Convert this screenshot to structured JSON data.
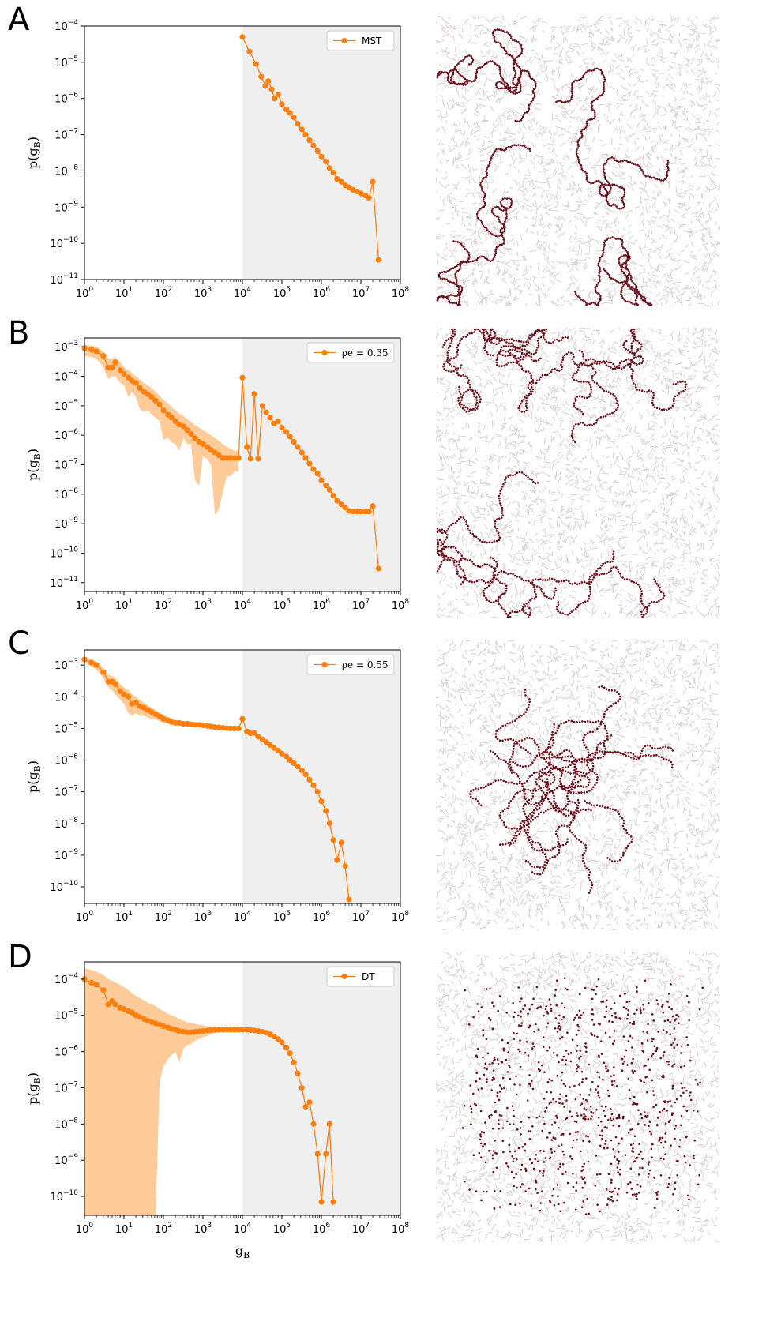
{
  "panels": [
    {
      "letter": "A",
      "legend": "MST",
      "legend_math": false
    },
    {
      "letter": "B",
      "legend": "ρe = 0.35",
      "legend_math": true
    },
    {
      "letter": "C",
      "legend": "ρe = 0.55",
      "legend_math": true
    },
    {
      "letter": "D",
      "legend": "DT",
      "legend_math": false
    }
  ],
  "axis": {
    "ylabel": "p(gB)",
    "xlabel": "gB",
    "xtick_labels": [
      "10^0",
      "10^1",
      "10^2",
      "10^3",
      "10^4",
      "10^5",
      "10^6",
      "10^7",
      "10^8"
    ]
  },
  "colors": {
    "series": "#ff7f0e",
    "band": "#ffcc99",
    "shaded_region": "#efefef",
    "network_edges": "#d8cfcf",
    "highlight_nodes": "#6b0f1a"
  },
  "chart_data": [
    {
      "type": "line",
      "title": "",
      "xlabel": "",
      "ylabel": "p(gB)",
      "xscale": "log",
      "yscale": "log",
      "xlim": [
        1,
        100000000
      ],
      "ylim": [
        1e-11,
        0.0001
      ],
      "yticks": [
        -11,
        -10,
        -9,
        -8,
        -7,
        -6,
        -5,
        -4
      ],
      "shaded_x_range": [
        10000,
        100000000
      ],
      "legend": "top-right",
      "series": [
        {
          "name": "MST",
          "x": [
            10000,
            15000,
            22000,
            30000,
            38000,
            45000,
            55000,
            65000,
            80000,
            100000,
            130000,
            160000,
            200000,
            250000,
            320000,
            400000,
            500000,
            630000,
            800000,
            1000000,
            1300000,
            1600000,
            2000000,
            2500000,
            3200000,
            4000000,
            5000000,
            6300000,
            8000000,
            10000000,
            13000000,
            16000000,
            20000000,
            28000000
          ],
          "y": [
            5e-05,
            2e-05,
            9e-06,
            4e-06,
            2.2e-06,
            3e-06,
            1.8e-06,
            1e-06,
            1.3e-06,
            7e-07,
            5e-07,
            4e-07,
            3e-07,
            2e-07,
            1.4e-07,
            1e-07,
            7e-08,
            5e-08,
            3.5e-08,
            2.5e-08,
            1.8e-08,
            1.2e-08,
            9e-09,
            6e-09,
            5e-09,
            4e-09,
            3.5e-09,
            3e-09,
            2.7e-09,
            2.4e-09,
            2.1e-09,
            1.8e-09,
            5e-09,
            3.5e-11
          ]
        }
      ]
    },
    {
      "type": "line",
      "title": "",
      "xlabel": "",
      "ylabel": "p(gB)",
      "xscale": "log",
      "yscale": "log",
      "xlim": [
        1,
        100000000
      ],
      "ylim": [
        5e-12,
        0.002
      ],
      "yticks": [
        -11,
        -10,
        -9,
        -8,
        -7,
        -6,
        -5,
        -4,
        -3
      ],
      "shaded_x_range": [
        10000,
        100000000
      ],
      "legend": "top-right",
      "series": [
        {
          "name": "ρe = 0.35",
          "x": [
            1,
            1.5,
            2,
            3,
            4,
            5,
            6,
            8,
            10,
            13,
            16,
            20,
            25,
            32,
            40,
            50,
            63,
            80,
            100,
            130,
            160,
            200,
            250,
            320,
            400,
            500,
            630,
            800,
            1000,
            1300,
            1600,
            2000,
            2500,
            3200,
            4000,
            5000,
            6300,
            8000,
            10000,
            13000,
            16000,
            20000,
            25000,
            32000,
            40000,
            50000,
            63000,
            80000,
            100000,
            130000,
            160000,
            200000,
            250000,
            320000,
            400000,
            500000,
            630000,
            800000,
            1000000,
            1300000,
            1600000,
            2000000,
            2500000,
            3200000,
            4000000,
            5000000,
            6300000,
            8000000,
            10000000,
            13000000,
            16000000,
            20000000,
            28000000
          ],
          "y": [
            0.0009,
            0.0008,
            0.0007,
            0.0005,
            0.0002,
            0.0002,
            0.0003,
            0.00016,
            0.00012,
            9e-05,
            7e-05,
            6e-05,
            4e-05,
            3e-05,
            2.5e-05,
            2e-05,
            1.5e-05,
            1.1e-05,
            7e-06,
            5e-06,
            4e-06,
            3e-06,
            2.3e-06,
            2e-06,
            1.5e-06,
            1.1e-06,
            8e-07,
            6e-07,
            5e-07,
            4e-07,
            3.2e-07,
            2.6e-07,
            2.1e-07,
            1.7e-07,
            1.7e-07,
            1.7e-07,
            1.7e-07,
            1.7e-07,
            9e-05,
            4e-07,
            1.6e-07,
            2.5e-05,
            1.6e-07,
            1e-05,
            6e-06,
            4e-06,
            2.5e-06,
            3e-06,
            1.8e-06,
            1.3e-06,
            9e-07,
            6e-07,
            4e-07,
            2.6e-07,
            1.7e-07,
            1.1e-07,
            7e-08,
            5e-08,
            3e-08,
            2e-08,
            1.4e-08,
            9e-09,
            6e-09,
            4.5e-09,
            3.5e-09,
            2.7e-09,
            2.6e-09,
            2.6e-09,
            2.6e-09,
            2.6e-09,
            2.6e-09,
            4e-09,
            3e-11
          ],
          "band_upper": [
            0.0012,
            0.0011,
            0.001,
            0.0007,
            0.0004,
            0.0004,
            0.00045,
            0.0003,
            0.0002,
            0.00016,
            0.00013,
            0.0001,
            8e-05,
            6e-05,
            5e-05,
            4e-05,
            3e-05,
            2.2e-05,
            1.6e-05,
            1.2e-05,
            9e-06,
            7e-06,
            5.5e-06,
            4.5e-06,
            3.5e-06,
            2.8e-06,
            2.2e-06,
            1.8e-06,
            1.5e-06,
            1.2e-06,
            1e-06,
            8e-07,
            6.5e-07,
            5e-07,
            4e-07,
            3.5e-07,
            3e-07,
            3e-07
          ],
          "band_lower": [
            0.0005,
            0.00045,
            0.0004,
            0.0002,
            8e-05,
            0.0001,
            0.0001,
            6e-05,
            5e-05,
            2e-05,
            3e-05,
            2e-05,
            8e-06,
            6e-06,
            7e-06,
            5e-06,
            4e-06,
            3e-06,
            7e-07,
            8e-07,
            6e-07,
            5e-07,
            3e-07,
            8e-07,
            5e-07,
            5e-07,
            3e-08,
            2e-08,
            2e-07,
            1.5e-07,
            1e-07,
            2e-09,
            3e-09,
            1.2e-08,
            4e-08,
            4e-08,
            6e-08,
            6e-08
          ]
        }
      ]
    },
    {
      "type": "line",
      "title": "",
      "xlabel": "",
      "ylabel": "p(gB)",
      "xscale": "log",
      "yscale": "log",
      "xlim": [
        1,
        100000000
      ],
      "ylim": [
        3e-11,
        0.003
      ],
      "yticks": [
        -10,
        -9,
        -8,
        -7,
        -6,
        -5,
        -4,
        -3
      ],
      "shaded_x_range": [
        10000,
        100000000
      ],
      "legend": "top-right",
      "series": [
        {
          "name": "ρe = 0.55",
          "x": [
            1,
            1.5,
            2,
            3,
            4,
            5,
            6,
            8,
            10,
            13,
            16,
            20,
            25,
            32,
            40,
            50,
            63,
            80,
            100,
            130,
            160,
            200,
            250,
            320,
            400,
            500,
            630,
            800,
            1000,
            1300,
            1600,
            2000,
            2500,
            3200,
            4000,
            5000,
            6300,
            8000,
            10000,
            13000,
            16000,
            20000,
            25000,
            32000,
            40000,
            50000,
            63000,
            80000,
            100000,
            130000,
            160000,
            200000,
            250000,
            320000,
            400000,
            500000,
            630000,
            800000,
            1000000,
            1300000,
            1600000,
            2000000,
            2500000,
            3200000,
            4000000,
            5000000
          ],
          "y": [
            0.0015,
            0.0012,
            0.001,
            0.0006,
            0.0003,
            0.0003,
            0.00025,
            0.00015,
            0.00012,
            0.0001,
            6e-05,
            6.5e-05,
            5e-05,
            4.5e-05,
            3.8e-05,
            3.3e-05,
            2.8e-05,
            2.4e-05,
            2e-05,
            1.8e-05,
            1.6e-05,
            1.5e-05,
            1.5e-05,
            1.4e-05,
            1.4e-05,
            1.35e-05,
            1.3e-05,
            1.3e-05,
            1.25e-05,
            1.2e-05,
            1.15e-05,
            1.1e-05,
            1.08e-05,
            1.05e-05,
            1.02e-05,
            1e-05,
            1e-05,
            1e-05,
            2e-05,
            8e-06,
            7e-06,
            7.2e-06,
            5.5e-06,
            4.5e-06,
            3.7e-06,
            3e-06,
            2.4e-06,
            2e-06,
            1.6e-06,
            1.3e-06,
            1e-06,
            8e-07,
            6.3e-07,
            4.8e-07,
            3.5e-07,
            2.4e-07,
            1.6e-07,
            1e-07,
            5e-08,
            2.5e-08,
            1e-08,
            3e-09,
            7e-10,
            2.5e-09,
            4.5e-10,
            4e-11
          ],
          "band_upper": [
            0.0018,
            0.0015,
            0.0013,
            0.0008,
            0.0005,
            0.00045,
            0.0004,
            0.00025,
            0.0002,
            0.00016,
            0.00012,
            0.0001,
            8e-05,
            6.5e-05,
            5.5e-05,
            4.5e-05,
            3.8e-05,
            3.2e-05,
            2.7e-05,
            2.3e-05,
            2e-05,
            1.8e-05,
            1.7e-05,
            1.6e-05,
            1.5e-05,
            1.45e-05,
            1.4e-05,
            1.35e-05,
            1.3e-05,
            1.25e-05,
            1.2e-05,
            1.15e-05,
            1.12e-05,
            1.1e-05,
            1.07e-05,
            1.05e-05,
            1.05e-05,
            1.05e-05
          ],
          "band_lower": [
            0.0012,
            0.0009,
            0.0007,
            0.0004,
            0.0002,
            0.00016,
            0.00012,
            8e-05,
            6e-05,
            3e-05,
            2.5e-05,
            3e-05,
            2.5e-05,
            2.5e-05,
            2.2e-05,
            2e-05,
            1.9e-05,
            1.7e-05,
            1.5e-05,
            1.4e-05,
            1.3e-05,
            1.25e-05,
            1.2e-05,
            1.2e-05,
            1.2e-05,
            1.2e-05,
            1.15e-05,
            1.15e-05,
            1.1e-05,
            1.1e-05,
            1.05e-05,
            1e-05,
            1e-05,
            9.8e-06,
            9.6e-06,
            9.5e-06,
            9.5e-06,
            9.5e-06
          ]
        }
      ]
    },
    {
      "type": "line",
      "title": "",
      "xlabel": "gB",
      "ylabel": "p(gB)",
      "xscale": "log",
      "yscale": "log",
      "xlim": [
        1,
        100000000
      ],
      "ylim": [
        3e-11,
        0.0003
      ],
      "yticks": [
        -10,
        -9,
        -8,
        -7,
        -6,
        -5,
        -4
      ],
      "shaded_x_range": [
        10000,
        100000000
      ],
      "legend": "top-right",
      "series": [
        {
          "name": "DT",
          "x": [
            1,
            1.5,
            2,
            3,
            4,
            5,
            6,
            8,
            10,
            13,
            16,
            20,
            25,
            32,
            40,
            50,
            63,
            80,
            100,
            130,
            160,
            200,
            250,
            320,
            400,
            500,
            630,
            800,
            1000,
            1300,
            1600,
            2000,
            2500,
            3200,
            4000,
            5000,
            6300,
            8000,
            10000,
            13000,
            16000,
            20000,
            25000,
            32000,
            40000,
            50000,
            63000,
            80000,
            100000,
            130000,
            160000,
            200000,
            250000,
            320000,
            400000,
            500000,
            630000,
            800000,
            1000000,
            1300000,
            1600000,
            2000000
          ],
          "y": [
            0.0001,
            8e-05,
            7e-05,
            5e-05,
            2e-05,
            2.5e-05,
            2e-05,
            1.6e-05,
            1.5e-05,
            1.3e-05,
            1.2e-05,
            1e-05,
            9e-06,
            8e-06,
            7e-06,
            6.5e-06,
            6e-06,
            5.5e-06,
            5e-06,
            4.6e-06,
            4.2e-06,
            4e-06,
            3.7e-06,
            3.5e-06,
            3.4e-06,
            3.4e-06,
            3.5e-06,
            3.6e-06,
            3.7e-06,
            3.8e-06,
            3.9e-06,
            4e-06,
            4e-06,
            4e-06,
            4e-06,
            4e-06,
            4e-06,
            4e-06,
            4e-06,
            4e-06,
            3.9e-06,
            3.8e-06,
            3.7e-06,
            3.5e-06,
            3.3e-06,
            3e-06,
            2.6e-06,
            2.2e-06,
            1.8e-06,
            1.3e-06,
            9e-07,
            5e-07,
            2.5e-07,
            1e-07,
            3e-08,
            4e-08,
            1e-08,
            1.5e-09,
            7e-11,
            1.5e-09,
            1e-08,
            7e-11
          ],
          "band_upper": [
            0.0002,
            0.00018,
            0.00016,
            0.00013,
            0.0001,
            9e-05,
            8e-05,
            7e-05,
            6e-05,
            5e-05,
            4e-05,
            3.5e-05,
            3e-05,
            2.6e-05,
            2.2e-05,
            2e-05,
            1.8e-05,
            1.5e-05,
            1.3e-05,
            1.1e-05,
            1e-05,
            9e-06,
            8e-06,
            7e-06,
            6.5e-06,
            6e-06,
            5.8e-06,
            5.5e-06,
            5.3e-06,
            5e-06,
            4.8e-06,
            4.6e-06,
            4.5e-06,
            4.4e-06,
            4.3e-06,
            4.2e-06,
            4.2e-06,
            4.2e-06
          ],
          "band_lower": [
            3e-11,
            3e-11,
            3e-11,
            3e-11,
            3e-11,
            3e-11,
            3e-11,
            3e-11,
            3e-11,
            3e-11,
            3e-11,
            3e-11,
            3e-11,
            3e-11,
            3e-11,
            3e-11,
            3e-11,
            1.5e-07,
            4e-07,
            6e-07,
            8e-07,
            1e-06,
            5e-07,
            1.2e-06,
            1.5e-06,
            1.6e-06,
            2e-06,
            2.2e-06,
            2.5e-06,
            2.7e-06,
            3e-06,
            3.2e-06,
            3.4e-06,
            3.5e-06,
            3.6e-06,
            3.7e-06,
            3.8e-06,
            3.8e-06
          ]
        }
      ]
    }
  ]
}
